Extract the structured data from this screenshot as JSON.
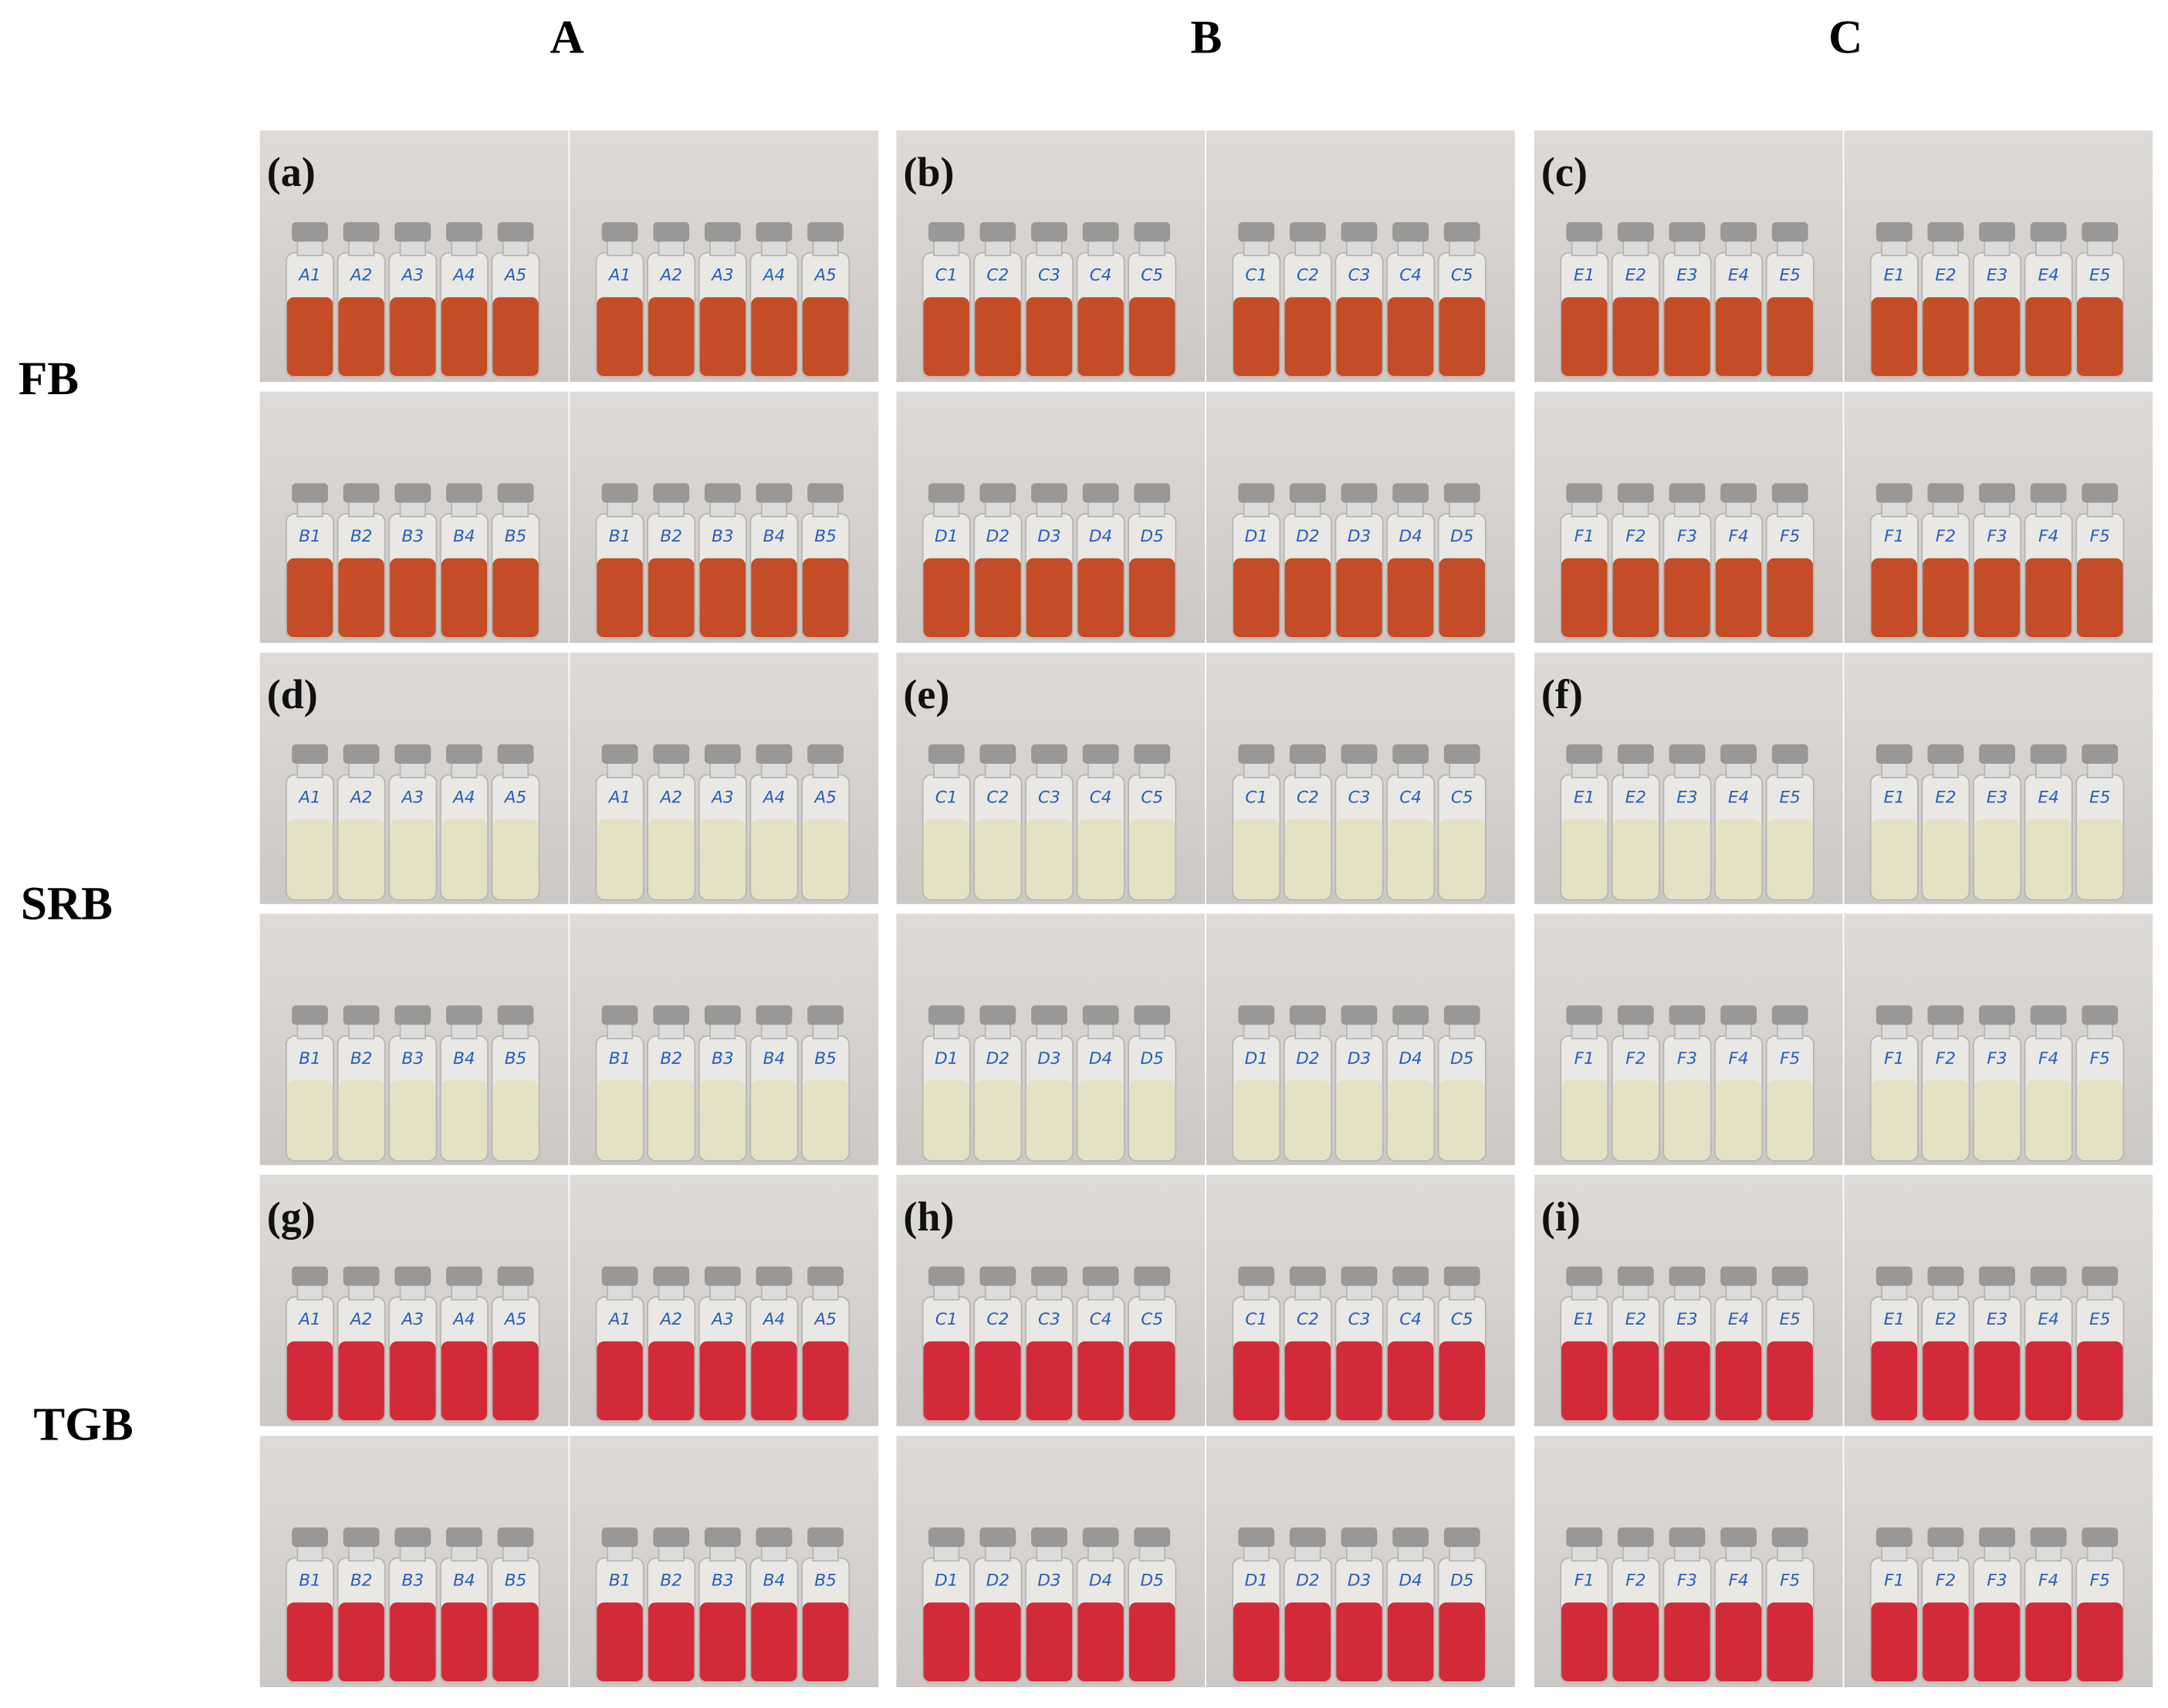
{
  "columns": [
    "A",
    "B",
    "C"
  ],
  "rows": [
    {
      "label": "FB",
      "liquid": "#c2431c",
      "panels": [
        {
          "label": "(a)",
          "vials": [
            [
              "A1",
              "A2",
              "A3",
              "A4",
              "A5"
            ],
            [
              "B1",
              "B2",
              "B3",
              "B4",
              "B5"
            ]
          ]
        },
        {
          "label": "(b)",
          "vials": [
            [
              "C1",
              "C2",
              "C3",
              "C4",
              "C5"
            ],
            [
              "D1",
              "D2",
              "D3",
              "D4",
              "D5"
            ]
          ]
        },
        {
          "label": "(c)",
          "vials": [
            [
              "E1",
              "E2",
              "E3",
              "E4",
              "E5"
            ],
            [
              "F1",
              "F2",
              "F3",
              "F4",
              "F5"
            ]
          ]
        }
      ]
    },
    {
      "label": "SRB",
      "liquid": "#e4e0c2",
      "panels": [
        {
          "label": "(d)",
          "vials": [
            [
              "A1",
              "A2",
              "A3",
              "A4",
              "A5"
            ],
            [
              "B1",
              "B2",
              "B3",
              "B4",
              "B5"
            ]
          ]
        },
        {
          "label": "(e)",
          "vials": [
            [
              "C1",
              "C2",
              "C3",
              "C4",
              "C5"
            ],
            [
              "D1",
              "D2",
              "D3",
              "D4",
              "D5"
            ]
          ]
        },
        {
          "label": "(f)",
          "vials": [
            [
              "E1",
              "E2",
              "E3",
              "E4",
              "E5"
            ],
            [
              "F1",
              "F2",
              "F3",
              "F4",
              "F5"
            ]
          ]
        }
      ]
    },
    {
      "label": "TGB",
      "liquid": "#d1202e",
      "panels": [
        {
          "label": "(g)",
          "vials": [
            [
              "A1",
              "A2",
              "A3",
              "A4",
              "A5"
            ],
            [
              "B1",
              "B2",
              "B3",
              "B4",
              "B5"
            ]
          ]
        },
        {
          "label": "(h)",
          "vials": [
            [
              "C1",
              "C2",
              "C3",
              "C4",
              "C5"
            ],
            [
              "D1",
              "D2",
              "D3",
              "D4",
              "D5"
            ]
          ]
        },
        {
          "label": "(i)",
          "vials": [
            [
              "E1",
              "E2",
              "E3",
              "E4",
              "E5"
            ],
            [
              "F1",
              "F2",
              "F3",
              "F4",
              "F5"
            ]
          ]
        }
      ]
    }
  ]
}
